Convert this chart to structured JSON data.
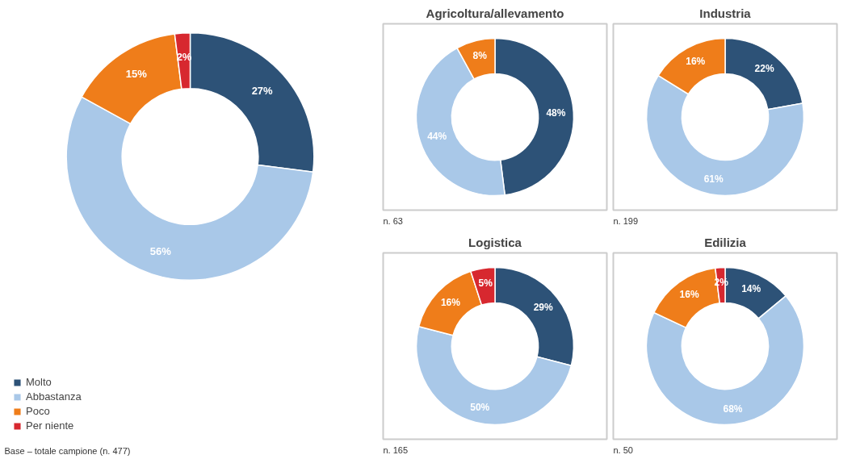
{
  "chart_data": [
    {
      "type": "donut",
      "categories": [
        "Molto",
        "Abbastanza",
        "Poco",
        "Per niente"
      ],
      "values": [
        27,
        56,
        15,
        2
      ],
      "colors": [
        "#2d5277",
        "#a9c8e8",
        "#ef7d1a",
        "#d7282f"
      ],
      "value_labels": [
        "27%",
        "56%",
        "15%",
        "2%"
      ],
      "legend": "bottom left",
      "annotations": [
        "Base – totale campione (n. 477)"
      ]
    },
    {
      "type": "donut",
      "title": "Agricoltura/allevamento",
      "categories": [
        null,
        null,
        null
      ],
      "values": [
        48,
        44,
        8
      ],
      "colors": [
        "#2d5277",
        "#a9c8e8",
        "#ef7d1a"
      ],
      "value_labels": [
        "48%",
        "44%",
        "8%"
      ],
      "annotations": [
        "n. 63"
      ]
    },
    {
      "type": "donut",
      "title": "Industria",
      "categories": [
        null,
        null,
        null
      ],
      "values": [
        22,
        61,
        16
      ],
      "colors": [
        "#2d5277",
        "#a9c8e8",
        "#ef7d1a"
      ],
      "value_labels": [
        "22%",
        "61%",
        "16%"
      ],
      "annotations": [
        "n. 199"
      ]
    },
    {
      "type": "donut",
      "title": "Logistica",
      "categories": [
        null,
        null,
        null,
        null
      ],
      "values": [
        29,
        50,
        16,
        5
      ],
      "colors": [
        "#2d5277",
        "#a9c8e8",
        "#ef7d1a",
        "#d7282f"
      ],
      "value_labels": [
        "29%",
        "50%",
        "16%",
        "5%"
      ],
      "annotations": [
        "n. 165"
      ]
    },
    {
      "type": "donut",
      "title": "Edilizia",
      "categories": [
        null,
        null,
        null,
        null
      ],
      "values": [
        14,
        68,
        16,
        2
      ],
      "colors": [
        "#2d5277",
        "#a9c8e8",
        "#ef7d1a",
        "#d7282f"
      ],
      "value_labels": [
        "14%",
        "68%",
        "16%",
        "2%"
      ],
      "annotations": [
        "n. 50"
      ]
    }
  ]
}
